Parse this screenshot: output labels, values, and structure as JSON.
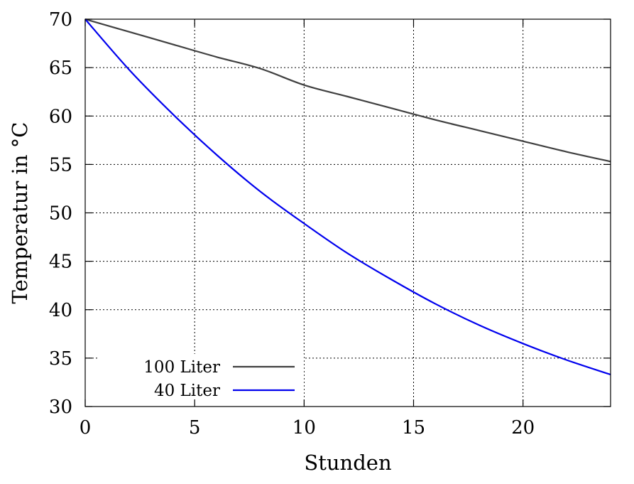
{
  "chart_data": {
    "type": "line",
    "xlabel": "Stunden",
    "ylabel": "Temperatur in °C",
    "xlim": [
      0,
      24
    ],
    "ylim": [
      30,
      70
    ],
    "xticks": [
      0,
      5,
      10,
      15,
      20
    ],
    "yticks": [
      30,
      35,
      40,
      45,
      50,
      55,
      60,
      65,
      70
    ],
    "grid": true,
    "legend_position": "bottom-left",
    "series": [
      {
        "name": "100 Liter",
        "color": "#404040",
        "x": [
          0,
          2,
          4,
          6,
          8,
          10,
          12,
          14,
          16,
          18,
          20,
          22,
          24
        ],
        "y": [
          70.0,
          68.7,
          67.4,
          66.1,
          64.9,
          63.2,
          62.0,
          60.8,
          59.6,
          58.5,
          57.4,
          56.3,
          55.3
        ]
      },
      {
        "name": "40 Liter",
        "color": "#0000ee",
        "x": [
          0,
          2,
          4,
          6,
          8,
          10,
          12,
          14,
          16,
          18,
          20,
          22,
          24
        ],
        "y": [
          70.0,
          64.8,
          60.2,
          56.0,
          52.2,
          48.9,
          45.8,
          43.1,
          40.6,
          38.4,
          36.5,
          34.8,
          33.3
        ]
      }
    ]
  }
}
